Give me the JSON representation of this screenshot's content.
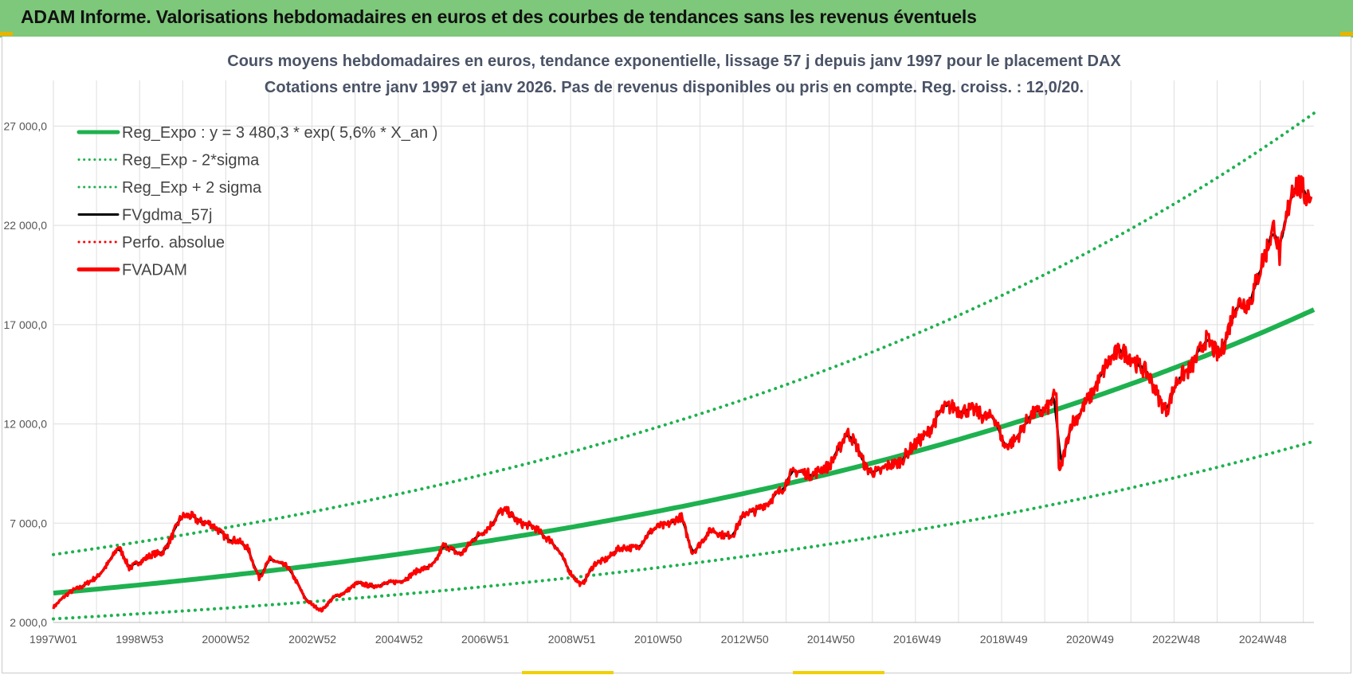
{
  "header": {
    "title": "ADAM Informe. Valorisations hebdomadaires en euros et des courbes de tendances sans les revenus éventuels"
  },
  "chart_data": {
    "type": "line",
    "title": "Cours moyens hebdomadaires en euros, tendance exponentielle, lissage 57 j depuis janv 1997  pour le placement DAX",
    "subtitle": "Cotations entre janv 1997 et janv 2026. Pas de revenus disponibles ou pris en compte. Reg. croiss. : 12,0/20.",
    "xlabel": "",
    "ylabel": "",
    "ylim": [
      2000,
      28500
    ],
    "yticks": [
      2000,
      7000,
      12000,
      17000,
      22000,
      27000
    ],
    "ytick_labels": [
      "2 000,0",
      "7 000,0",
      "12 000,0",
      "17 000,0",
      "22 000,0",
      "27 000,0"
    ],
    "xlim": [
      1997.0,
      2026.1
    ],
    "xticks": [
      1997.0,
      1998.99,
      2000.98,
      2002.98,
      2004.98,
      2006.97,
      2008.97,
      2010.96,
      2012.96,
      2014.95,
      2016.94,
      2018.94,
      2020.93,
      2022.92,
      2024.92
    ],
    "xtick_labels": [
      "1997W01",
      "1998W53",
      "2000W52",
      "2002W52",
      "2004W52",
      "2006W51",
      "2008W51",
      "2010W50",
      "2012W50",
      "2014W50",
      "2016W49",
      "2018W49",
      "2020W49",
      "2022W48",
      "2024W48"
    ],
    "grid": true,
    "legend_position": "top-left",
    "colors": {
      "green": "#1eb14f",
      "black": "#000000",
      "red": "#ff0000",
      "grid": "#dedede"
    },
    "series": [
      {
        "name": "Reg_Expo : y = 3 480,3 * exp( 5,6% *  X_an )",
        "style": "solid-thick",
        "color": "#1eb14f"
      },
      {
        "name": "Reg_Exp - 2*sigma",
        "style": "dotted",
        "color": "#1eb14f"
      },
      {
        "name": "Reg_Exp + 2 sigma",
        "style": "dotted",
        "color": "#1eb14f"
      },
      {
        "name": "FVgdma_57j",
        "style": "solid",
        "color": "#000000"
      },
      {
        "name": "Perfo. absolue",
        "style": "dotted",
        "color": "#ff0000"
      },
      {
        "name": "FVADAM",
        "style": "solid-thick",
        "color": "#ff0000"
      }
    ],
    "trend": {
      "formula_a": 3480.3,
      "growth_rate": 0.056,
      "lower_band_start": 2180,
      "upper_band_start": 5420
    },
    "dax_points": {
      "x": [
        1997.0,
        1997.5,
        1998.0,
        1998.5,
        1998.75,
        1998.95,
        1999.5,
        1999.95,
        2000.2,
        2000.6,
        2000.9,
        2001.5,
        2001.75,
        2002.0,
        2002.4,
        2002.8,
        2003.2,
        2003.5,
        2004.0,
        2004.7,
        2005.2,
        2005.8,
        2006.0,
        2006.4,
        2006.8,
        2007.3,
        2007.5,
        2008.0,
        2008.5,
        2008.9,
        2009.2,
        2009.5,
        2010.0,
        2010.5,
        2011.0,
        2011.5,
        2011.75,
        2012.2,
        2012.7,
        2013.0,
        2013.5,
        2014.0,
        2014.5,
        2014.9,
        2015.3,
        2015.6,
        2015.75,
        2016.1,
        2016.5,
        2016.9,
        2017.3,
        2017.8,
        2018.2,
        2018.7,
        2018.95,
        2019.4,
        2019.9,
        2020.15,
        2020.22,
        2020.5,
        2020.95,
        2021.3,
        2021.9,
        2022.2,
        2022.7,
        2022.9,
        2023.3,
        2023.6,
        2023.9,
        2024.3,
        2024.6,
        2025.0,
        2025.2,
        2025.3,
        2025.6,
        2025.9,
        2026.05
      ],
      "y": [
        2800,
        3700,
        4200,
        5800,
        4700,
        5100,
        5500,
        7200,
        7400,
        6900,
        6500,
        5700,
        4300,
        5100,
        4900,
        3200,
        2600,
        3300,
        3900,
        3900,
        4300,
        5000,
        5800,
        5500,
        6300,
        7500,
        7500,
        6800,
        6200,
        4600,
        3900,
        4900,
        5600,
        5900,
        6900,
        7200,
        5600,
        6600,
        6400,
        7600,
        7900,
        9400,
        9600,
        9700,
        11700,
        10500,
        9900,
        9500,
        10200,
        10800,
        12100,
        13000,
        12500,
        12500,
        10700,
        11900,
        12900,
        13400,
        9200,
        12200,
        13200,
        15200,
        15600,
        14500,
        12800,
        13800,
        15200,
        16000,
        15600,
        17700,
        18400,
        20400,
        22200,
        20700,
        23700,
        23800,
        24000
      ]
    }
  }
}
